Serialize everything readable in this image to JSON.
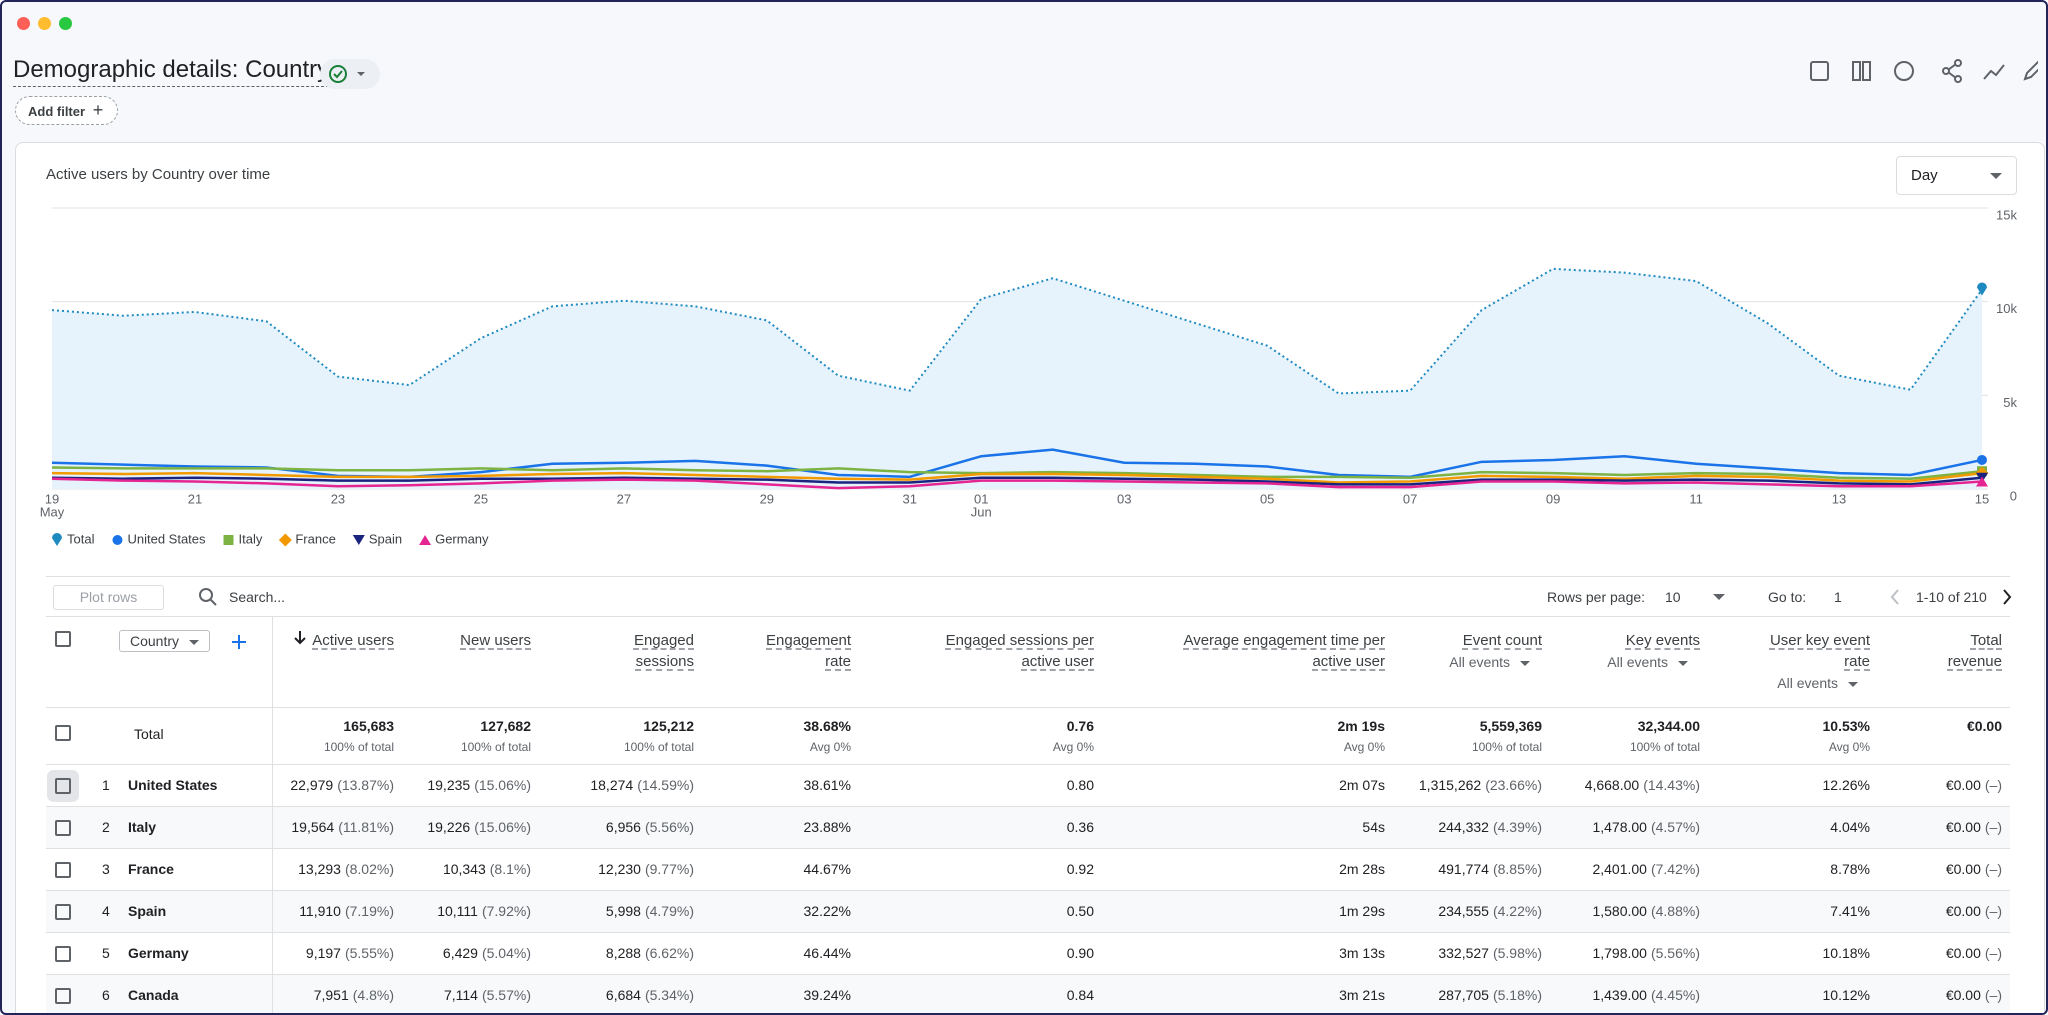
{
  "header": {
    "title": "Demographic details: Country",
    "add_filter": "Add filter"
  },
  "chart_card": {
    "granularity": "Day"
  },
  "chart_data": {
    "type": "line",
    "title": "Active users by Country over time",
    "categories": [
      "19",
      null,
      "21",
      null,
      "23",
      null,
      "25",
      null,
      "27",
      null,
      "29",
      null,
      "31",
      "01",
      null,
      "03",
      null,
      "05",
      null,
      "07",
      null,
      "09",
      null,
      "11",
      null,
      "13",
      null,
      "15"
    ],
    "month_labels": [
      "May",
      null,
      null,
      null,
      null,
      null,
      null,
      null,
      null,
      null,
      null,
      null,
      null,
      "Jun",
      null,
      null,
      null,
      null,
      null,
      null,
      null,
      null,
      null,
      null,
      null,
      null,
      null,
      null
    ],
    "ylim": [
      0,
      15000
    ],
    "yticks": [
      0,
      {
        "value": 5000,
        "label": "5k"
      },
      {
        "value": 10000,
        "label": "10k"
      },
      {
        "value": 15000,
        "label": "15k"
      }
    ],
    "grid": true,
    "series": [
      {
        "name": "Total",
        "color": "#1f8ac0",
        "style": "dotted",
        "fill": "#e6f3fc",
        "marker": "pin",
        "values": [
          9550,
          9250,
          9450,
          8950,
          6000,
          5550,
          8050,
          9750,
          10050,
          9750,
          9000,
          6050,
          5250,
          10150,
          11250,
          10050,
          8850,
          7650,
          5100,
          5250,
          9550,
          11750,
          11550,
          11100,
          8850,
          6050,
          5300,
          10650
        ]
      },
      {
        "name": "United States",
        "color": "#1a73e8",
        "marker": "circle",
        "values": [
          1400,
          1300,
          1200,
          1150,
          700,
          650,
          900,
          1350,
          1400,
          1500,
          1250,
          750,
          650,
          1750,
          2100,
          1400,
          1350,
          1200,
          750,
          650,
          1450,
          1550,
          1750,
          1350,
          1100,
          850,
          750,
          1550
        ]
      },
      {
        "name": "Italy",
        "color": "#7cb342",
        "marker": "square",
        "values": [
          1150,
          1100,
          1100,
          1100,
          1000,
          1000,
          1100,
          1000,
          1100,
          1000,
          950,
          1100,
          900,
          850,
          900,
          850,
          750,
          650,
          650,
          600,
          900,
          850,
          750,
          850,
          800,
          600,
          550,
          950
        ]
      },
      {
        "name": "France",
        "color": "#f29900",
        "marker": "diamond",
        "values": [
          850,
          800,
          850,
          750,
          650,
          650,
          700,
          800,
          850,
          750,
          650,
          550,
          500,
          800,
          800,
          750,
          650,
          550,
          350,
          400,
          700,
          650,
          550,
          700,
          650,
          450,
          400,
          850
        ]
      },
      {
        "name": "Spain",
        "color": "#1a237e",
        "marker": "triangle-down",
        "values": [
          600,
          550,
          600,
          550,
          450,
          450,
          550,
          550,
          600,
          550,
          500,
          350,
          350,
          600,
          600,
          550,
          500,
          400,
          250,
          250,
          500,
          500,
          450,
          500,
          450,
          300,
          250,
          600
        ]
      },
      {
        "name": "Germany",
        "color": "#e52592",
        "marker": "triangle",
        "values": [
          550,
          450,
          400,
          300,
          150,
          200,
          300,
          450,
          500,
          450,
          250,
          50,
          150,
          450,
          450,
          400,
          350,
          300,
          100,
          100,
          400,
          400,
          300,
          350,
          250,
          150,
          150,
          400
        ]
      }
    ]
  },
  "table_toolbar": {
    "plot_rows": "Plot rows",
    "search_placeholder": "Search...",
    "rows_per_page_label": "Rows per page:",
    "rows_per_page": "10",
    "go_to_label": "Go to:",
    "go_to": "1",
    "range": "1-10 of 210"
  },
  "table": {
    "dimension": "Country",
    "columns": [
      {
        "label": "Active users",
        "sorted": true
      },
      {
        "label": "New users"
      },
      {
        "label": "Engaged sessions"
      },
      {
        "label": "Engagement rate"
      },
      {
        "label": "Engaged sessions per active user"
      },
      {
        "label": "Average engagement time per active user"
      },
      {
        "label": "Event count",
        "filter": "All events"
      },
      {
        "label": "Key events",
        "filter": "All events"
      },
      {
        "label": "User key event rate",
        "filter": "All events"
      },
      {
        "label": "Total revenue"
      }
    ],
    "total": {
      "label": "Total",
      "cells": [
        [
          "165,683",
          "100% of total"
        ],
        [
          "127,682",
          "100% of total"
        ],
        [
          "125,212",
          "100% of total"
        ],
        [
          "38.68%",
          "Avg 0%"
        ],
        [
          "0.76",
          "Avg 0%"
        ],
        [
          "2m 19s",
          "Avg 0%"
        ],
        [
          "5,559,369",
          "100% of total"
        ],
        [
          "32,344.00",
          "100% of total"
        ],
        [
          "10.53%",
          "Avg 0%"
        ],
        [
          "€0.00"
        ]
      ]
    },
    "rows": [
      {
        "rank": 1,
        "country": "United States",
        "cells": [
          [
            "22,979",
            "(13.87%)"
          ],
          [
            "19,235",
            "(15.06%)"
          ],
          [
            "18,274",
            "(14.59%)"
          ],
          "38.61%",
          "0.80",
          "2m 07s",
          [
            "1,315,262",
            "(23.66%)"
          ],
          [
            "4,668.00",
            "(14.43%)"
          ],
          "12.26%",
          [
            "€0.00",
            "(–)"
          ]
        ]
      },
      {
        "rank": 2,
        "country": "Italy",
        "cells": [
          [
            "19,564",
            "(11.81%)"
          ],
          [
            "19,226",
            "(15.06%)"
          ],
          [
            "6,956",
            "(5.56%)"
          ],
          "23.88%",
          "0.36",
          "54s",
          [
            "244,332",
            "(4.39%)"
          ],
          [
            "1,478.00",
            "(4.57%)"
          ],
          "4.04%",
          [
            "€0.00",
            "(–)"
          ]
        ]
      },
      {
        "rank": 3,
        "country": "France",
        "cells": [
          [
            "13,293",
            "(8.02%)"
          ],
          [
            "10,343",
            "(8.1%)"
          ],
          [
            "12,230",
            "(9.77%)"
          ],
          "44.67%",
          "0.92",
          "2m 28s",
          [
            "491,774",
            "(8.85%)"
          ],
          [
            "2,401.00",
            "(7.42%)"
          ],
          "8.78%",
          [
            "€0.00",
            "(–)"
          ]
        ]
      },
      {
        "rank": 4,
        "country": "Spain",
        "cells": [
          [
            "11,910",
            "(7.19%)"
          ],
          [
            "10,111",
            "(7.92%)"
          ],
          [
            "5,998",
            "(4.79%)"
          ],
          "32.22%",
          "0.50",
          "1m 29s",
          [
            "234,555",
            "(4.22%)"
          ],
          [
            "1,580.00",
            "(4.88%)"
          ],
          "7.41%",
          [
            "€0.00",
            "(–)"
          ]
        ]
      },
      {
        "rank": 5,
        "country": "Germany",
        "cells": [
          [
            "9,197",
            "(5.55%)"
          ],
          [
            "6,429",
            "(5.04%)"
          ],
          [
            "8,288",
            "(6.62%)"
          ],
          "46.44%",
          "0.90",
          "3m 13s",
          [
            "332,527",
            "(5.98%)"
          ],
          [
            "1,798.00",
            "(5.56%)"
          ],
          "10.18%",
          [
            "€0.00",
            "(–)"
          ]
        ]
      },
      {
        "rank": 6,
        "country": "Canada",
        "cells": [
          [
            "7,951",
            "(4.8%)"
          ],
          [
            "7,114",
            "(5.57%)"
          ],
          [
            "6,684",
            "(5.34%)"
          ],
          "39.24%",
          "0.84",
          "3m 21s",
          [
            "287,705",
            "(5.18%)"
          ],
          [
            "1,439.00",
            "(4.45%)"
          ],
          "10.12%",
          [
            "€0.00",
            "(–)"
          ]
        ]
      }
    ]
  }
}
